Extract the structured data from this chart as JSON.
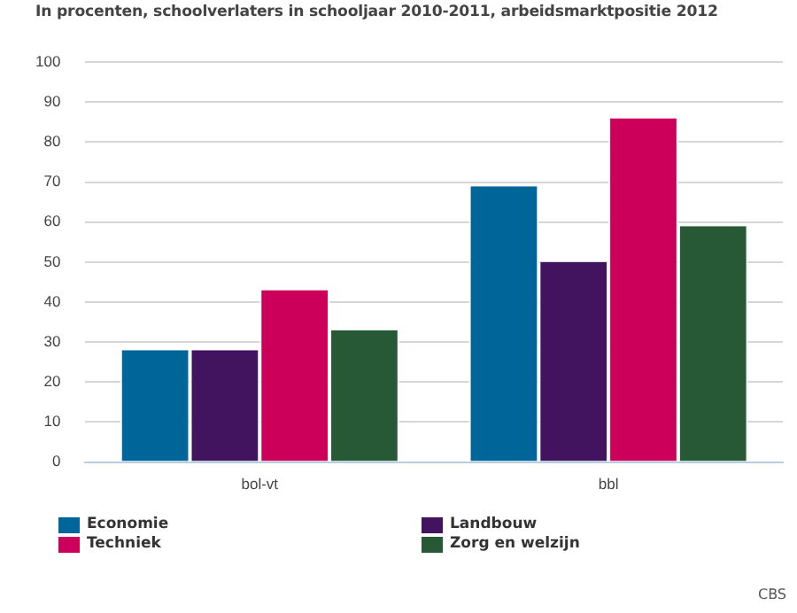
{
  "chart_data": {
    "type": "bar",
    "title": "In procenten, schoolverlaters in schooljaar 2010-2011, arbeidsmarktpositie 2012",
    "categories": [
      "bol-vt",
      "bbl"
    ],
    "series": [
      {
        "name": "Economie",
        "color": "#00669a",
        "values": [
          28,
          69
        ]
      },
      {
        "name": "Landbouw",
        "color": "#42145f",
        "values": [
          28,
          50
        ]
      },
      {
        "name": "Techniek",
        "color": "#cc005a",
        "values": [
          43,
          86
        ]
      },
      {
        "name": "Zorg en welzijn",
        "color": "#275937",
        "values": [
          33,
          59
        ]
      }
    ],
    "ylim": [
      0,
      100
    ],
    "yticks": [
      0,
      10,
      20,
      30,
      40,
      50,
      60,
      70,
      80,
      90,
      100
    ],
    "grid": "y",
    "legend": "bottom",
    "annotations": [
      "CBS"
    ]
  }
}
